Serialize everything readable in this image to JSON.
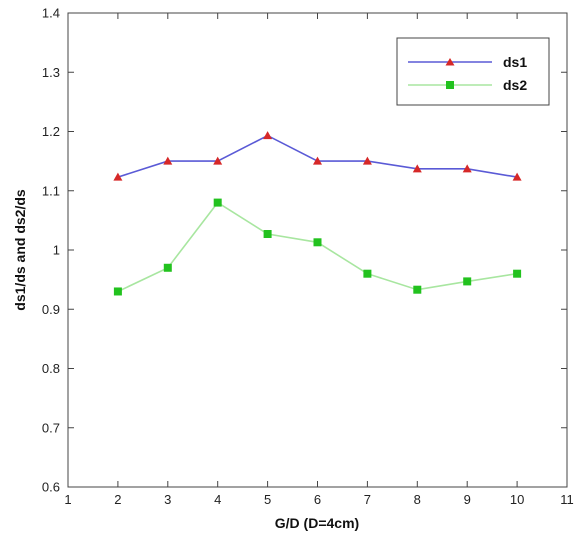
{
  "chart_data": {
    "type": "line",
    "xlabel": "G/D (D=4cm)",
    "ylabel": "ds1/ds  and  ds2/ds",
    "xlim": [
      1,
      11
    ],
    "ylim": [
      0.6,
      1.4
    ],
    "xticks": [
      1,
      2,
      3,
      4,
      5,
      6,
      7,
      8,
      9,
      10,
      11
    ],
    "yticks": [
      0.6,
      0.7,
      0.8,
      0.9,
      1,
      1.1,
      1.2,
      1.3,
      1.4
    ],
    "xtick_labels": [
      "1",
      "2",
      "3",
      "4",
      "5",
      "6",
      "7",
      "8",
      "9",
      "10",
      "11"
    ],
    "ytick_labels": [
      "0.6",
      "0.7",
      "0.8",
      "0.9",
      "1",
      "1.1",
      "1.2",
      "1.3",
      "1.4"
    ],
    "grid": false,
    "legend_position": "top-right",
    "x": [
      2,
      3,
      4,
      5,
      6,
      7,
      8,
      9,
      10
    ],
    "series": [
      {
        "name": "ds1",
        "values": [
          1.123,
          1.15,
          1.15,
          1.193,
          1.15,
          1.15,
          1.137,
          1.137,
          1.123
        ],
        "line_color": "#5a5ad6",
        "marker_color": "#d62828",
        "marker": "triangle"
      },
      {
        "name": "ds2",
        "values": [
          0.93,
          0.97,
          1.08,
          1.027,
          1.013,
          0.96,
          0.933,
          0.947,
          0.96
        ],
        "line_color": "#a8e6a0",
        "marker_color": "#22c21e",
        "marker": "square"
      }
    ]
  }
}
